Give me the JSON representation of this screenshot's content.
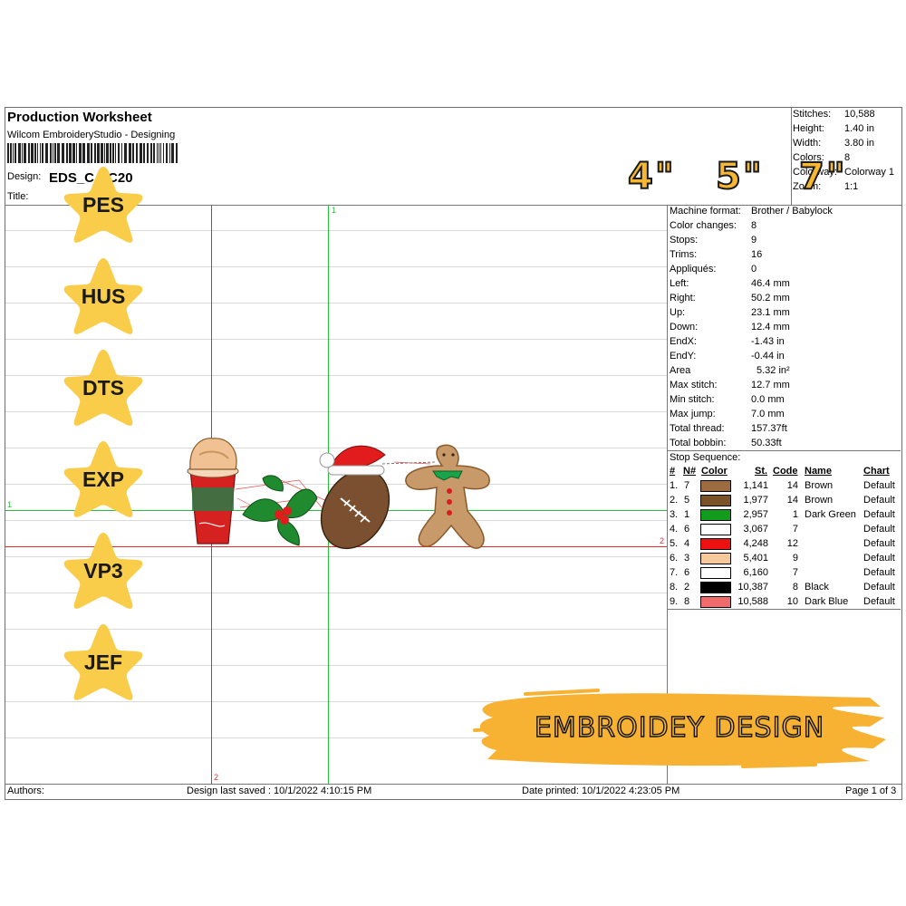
{
  "header": {
    "title": "Production Worksheet",
    "subtitle": "Wilcom EmbroideryStudio - Designing",
    "design_label": "Design:",
    "design_value": "EDS_C    CC20",
    "title_label": "Title:"
  },
  "summary": [
    {
      "label": "Stitches:",
      "value": "10,588"
    },
    {
      "label": "Height:",
      "value": "1.40 in"
    },
    {
      "label": "Width:",
      "value": "3.80 in"
    },
    {
      "label": "Colors:",
      "value": "8"
    },
    {
      "label": "Colorway:",
      "value": "Colorway 1"
    },
    {
      "label": "Zoom:",
      "value": "1:1"
    }
  ],
  "sizes": [
    "4\"",
    "5\"",
    "7\""
  ],
  "formats": [
    "PES",
    "HUS",
    "DTS",
    "EXP",
    "VP3",
    "JEF"
  ],
  "machine": [
    {
      "label": "Machine format:",
      "value": "Brother / Babylock"
    },
    {
      "label": "Color changes:",
      "value": "8"
    },
    {
      "label": "Stops:",
      "value": "9"
    },
    {
      "label": "Trims:",
      "value": "16"
    },
    {
      "label": "Appliqués:",
      "value": "0"
    },
    {
      "label": "Left:",
      "value": "46.4 mm"
    },
    {
      "label": "Right:",
      "value": "50.2 mm"
    },
    {
      "label": "Up:",
      "value": "23.1 mm"
    },
    {
      "label": "Down:",
      "value": "12.4 mm"
    },
    {
      "label": "EndX:",
      "value": "-1.43 in"
    },
    {
      "label": "EndY:",
      "value": "-0.44 in"
    },
    {
      "label": "Area",
      "value": "5.32 in²"
    },
    {
      "label": "Max stitch:",
      "value": "12.7 mm"
    },
    {
      "label": "Min stitch:",
      "value": "0.0 mm"
    },
    {
      "label": "Max jump:",
      "value": "7.0 mm"
    },
    {
      "label": "Total thread:",
      "value": "157.37ft"
    },
    {
      "label": "Total bobbin:",
      "value": "50.33ft"
    }
  ],
  "stop_sequence": {
    "title": "Stop Sequence:",
    "headers": {
      "num": "#",
      "n": "N#",
      "color": "Color",
      "st": "St.",
      "code": "Code",
      "name": "Name",
      "chart": "Chart"
    },
    "rows": [
      {
        "num": "1.",
        "n": "7",
        "color": "#9c6b3e",
        "st": "1,141",
        "code": "14",
        "name": "Brown",
        "chart": "Default"
      },
      {
        "num": "2.",
        "n": "5",
        "color": "#7a5228",
        "st": "1,977",
        "code": "14",
        "name": "Brown",
        "chart": "Default"
      },
      {
        "num": "3.",
        "n": "1",
        "color": "#129c1c",
        "st": "2,957",
        "code": "1",
        "name": "Dark Green",
        "chart": "Default"
      },
      {
        "num": "4.",
        "n": "6",
        "color": "#ffffff",
        "st": "3,067",
        "code": "7",
        "name": "",
        "chart": "Default"
      },
      {
        "num": "5.",
        "n": "4",
        "color": "#ee1111",
        "st": "4,248",
        "code": "12",
        "name": "",
        "chart": "Default"
      },
      {
        "num": "6.",
        "n": "3",
        "color": "#f6c89a",
        "st": "5,401",
        "code": "9",
        "name": "",
        "chart": "Default"
      },
      {
        "num": "7.",
        "n": "6",
        "color": "#ffffff",
        "st": "6,160",
        "code": "7",
        "name": "",
        "chart": "Default"
      },
      {
        "num": "8.",
        "n": "2",
        "color": "#000000",
        "st": "10,387",
        "code": "8",
        "name": "Black",
        "chart": "Default"
      },
      {
        "num": "9.",
        "n": "8",
        "color": "#f06b6b",
        "st": "10,588",
        "code": "10",
        "name": "Dark Blue",
        "chart": "Default"
      }
    ]
  },
  "axes": {
    "green_top": "1",
    "green_left": "1",
    "red_right": "2",
    "red_bottom": "2"
  },
  "brand_text": "EMBROIDEY DESIGN",
  "footer": {
    "authors": "Authors:",
    "saved": "Design last saved : 10/1/2022 4:10:15 PM",
    "printed": "Date printed: 10/1/2022 4:23:05 PM",
    "page": "Page 1 of 3"
  }
}
